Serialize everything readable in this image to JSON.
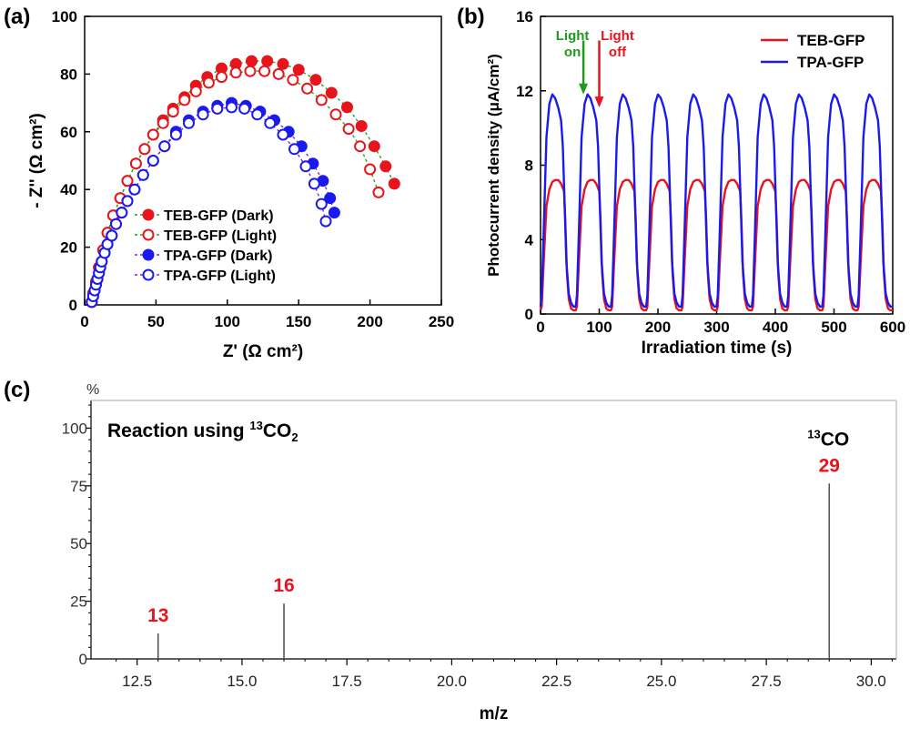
{
  "chart_data": [
    {
      "panel_label": "(a)",
      "type": "scatter",
      "xlabel": "Z' (Ω cm²)",
      "ylabel": "- Z'' (Ω cm²)",
      "xlim": [
        0,
        250
      ],
      "ylim": [
        0,
        100
      ],
      "xticks": [
        0,
        50,
        100,
        150,
        200,
        250
      ],
      "yticks": [
        0,
        20,
        40,
        60,
        80,
        100
      ],
      "legend_position": "bottom-left",
      "series": [
        {
          "name": "TEB-GFP (Dark)",
          "color": "#e8141c",
          "filled": true,
          "line_color": "#2aa02a",
          "x": [
            5,
            6,
            8,
            10,
            13,
            16,
            20,
            25,
            30,
            36,
            42,
            48,
            55,
            62,
            70,
            78,
            86,
            96,
            106,
            117,
            128,
            139,
            150,
            162,
            173,
            184,
            194,
            203,
            211,
            217
          ],
          "y": [
            1,
            4,
            8,
            13,
            19,
            25,
            31,
            37,
            43,
            49,
            54,
            59,
            64,
            68,
            72,
            76,
            79,
            82,
            83.5,
            84.5,
            84.5,
            83.5,
            81.5,
            78,
            73.5,
            68.5,
            62,
            55,
            48,
            42
          ]
        },
        {
          "name": "TEB-GFP (Light)",
          "color": "#e8141c",
          "filled": false,
          "line_color": "#2aa02a",
          "x": [
            5,
            6,
            8,
            10,
            13,
            16,
            20,
            25,
            30,
            36,
            42,
            48,
            55,
            62,
            70,
            78,
            87,
            96,
            106,
            116,
            126,
            136,
            146,
            156,
            166,
            176,
            185,
            193,
            200,
            206
          ],
          "y": [
            1,
            4,
            8,
            13,
            19,
            25,
            31,
            37,
            43,
            49,
            54,
            59,
            63,
            67,
            71,
            74,
            77,
            79,
            80.5,
            81,
            81,
            80,
            78,
            75,
            71,
            66,
            61,
            55,
            47,
            39
          ]
        },
        {
          "name": "TPA-GFP (Dark)",
          "color": "#1a1aee",
          "filled": true,
          "line_color": "#7b2bc9",
          "x": [
            5,
            6,
            7,
            8,
            9,
            10,
            11,
            12,
            14,
            16,
            19,
            22,
            26,
            30,
            35,
            41,
            48,
            56,
            64,
            73,
            83,
            93,
            103,
            113,
            123,
            133,
            143,
            152,
            160,
            167,
            172,
            175
          ],
          "y": [
            1,
            3,
            5,
            7,
            9,
            11,
            13,
            15,
            18,
            21,
            24,
            28,
            32,
            36,
            40,
            45,
            50,
            55,
            60,
            64,
            67,
            69,
            70,
            69,
            67,
            64,
            60,
            55,
            49,
            43,
            37,
            32
          ]
        },
        {
          "name": "TPA-GFP (Light)",
          "color": "#1a1aee",
          "filled": false,
          "line_color": "#7b2bc9",
          "x": [
            5,
            6,
            7,
            8,
            9,
            10,
            11,
            12,
            14,
            16,
            19,
            22,
            26,
            30,
            35,
            41,
            48,
            56,
            64,
            73,
            83,
            93,
            103,
            112,
            121,
            130,
            139,
            147,
            155,
            161,
            166,
            169
          ],
          "y": [
            1,
            3,
            5,
            7,
            9,
            11,
            13,
            15,
            18,
            21,
            24,
            28,
            32,
            36,
            40,
            45,
            50,
            55,
            59,
            63,
            66,
            68,
            68.5,
            68,
            66,
            63,
            59,
            54,
            48,
            42,
            35,
            29
          ]
        }
      ]
    },
    {
      "panel_label": "(b)",
      "type": "line",
      "xlabel": "Irradiation time (s)",
      "ylabel": "Photocurrent density (μA/cm²)",
      "xlim": [
        0,
        600
      ],
      "ylim": [
        0,
        16
      ],
      "xticks": [
        0,
        100,
        200,
        300,
        400,
        500,
        600
      ],
      "yticks": [
        0,
        4,
        8,
        12,
        16
      ],
      "legend_position": "top-right",
      "cycle_period_s": 60,
      "cycle_count": 10,
      "series": [
        {
          "name": "TEB-GFP",
          "color": "#e8141c",
          "x": [
            0,
            2,
            5,
            10,
            15,
            20,
            25,
            30,
            35,
            40,
            42,
            45,
            48,
            52,
            56,
            60
          ],
          "y": [
            0.2,
            0.4,
            2.5,
            5.8,
            6.7,
            7.1,
            7.2,
            7.2,
            7.0,
            6.6,
            5.2,
            2.2,
            0.8,
            0.3,
            0.2,
            0.2
          ]
        },
        {
          "name": "TPA-GFP",
          "color": "#1a1aee",
          "x": [
            0,
            2,
            5,
            10,
            15,
            20,
            25,
            30,
            35,
            38,
            41,
            44,
            48,
            52,
            56,
            60
          ],
          "y": [
            0.4,
            1.0,
            4.0,
            9.5,
            11.3,
            11.8,
            11.6,
            11.1,
            10.4,
            9.0,
            6.0,
            2.8,
            1.1,
            0.6,
            0.4,
            0.4
          ]
        }
      ],
      "annotations": [
        {
          "text_line1": "Light",
          "text_line2": "on",
          "color": "#1f9a1f",
          "arrow_x": 73,
          "arrow_from_y": 14.7,
          "arrow_to_y": 11.9
        },
        {
          "text_line1": "Light",
          "text_line2": "off",
          "color": "#e8141c",
          "arrow_x": 100,
          "arrow_from_y": 14.7,
          "arrow_to_y": 11.2
        }
      ]
    },
    {
      "panel_label": "(c)",
      "type": "bar",
      "xlabel": "m/z",
      "ylabel_unit": "%",
      "title_prefix": "Reaction using ",
      "title_sup": "13",
      "title_rest": "CO",
      "title_sub": "2",
      "xlim": [
        11.4,
        30.6
      ],
      "ylim": [
        0,
        112
      ],
      "xticks": [
        12.5,
        15.0,
        17.5,
        20.0,
        22.5,
        25.0,
        27.5,
        30.0
      ],
      "xtick_labels": [
        "12.5",
        "15.0",
        "17.5",
        "20.0",
        "22.5",
        "25.0",
        "27.5",
        "30.0"
      ],
      "yticks": [
        0,
        25,
        50,
        75,
        100
      ],
      "ytick_labels": [
        "0",
        "25",
        "50",
        "75",
        "100"
      ],
      "peaks": [
        {
          "mz": 13,
          "intensity": 11,
          "label": "13",
          "label_color": "#e8141c"
        },
        {
          "mz": 16,
          "intensity": 24,
          "label": "16",
          "label_color": "#e8141c"
        },
        {
          "mz": 29,
          "intensity": 76,
          "label": "29",
          "label_color": "#e8141c",
          "species_sup": "13",
          "species": "CO"
        }
      ]
    }
  ]
}
